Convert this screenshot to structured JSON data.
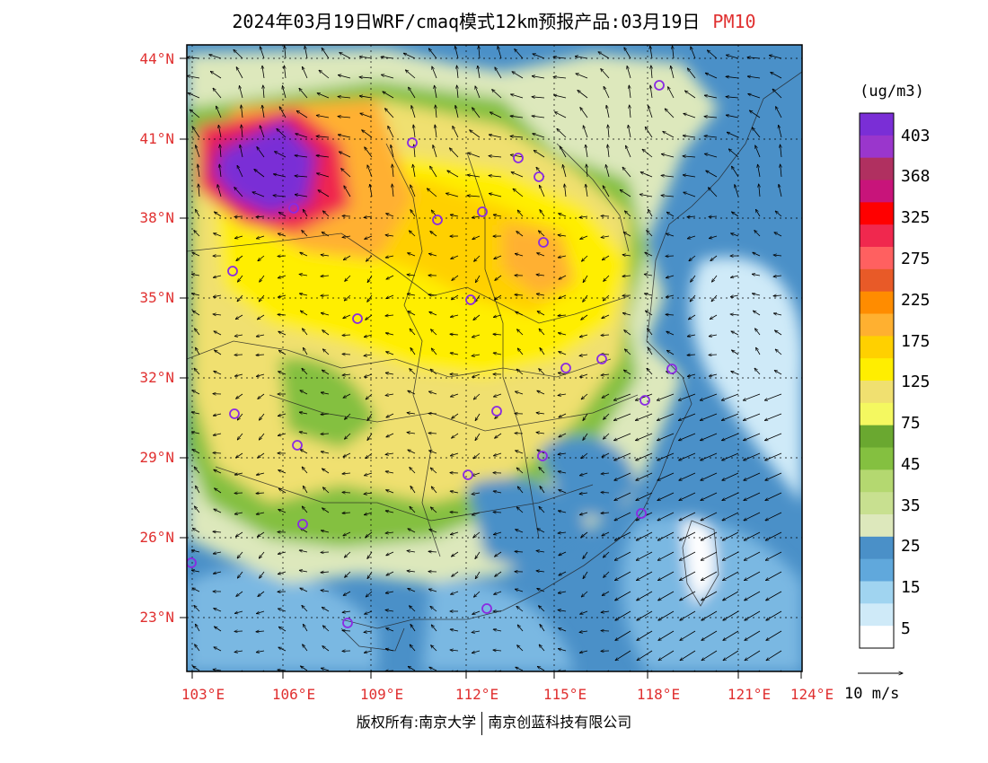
{
  "title": {
    "main": "2024年03月19日WRF/cmaq模式12km预报产品:03月19日",
    "pollutant": "PM10"
  },
  "axes": {
    "lat_labels": [
      "44°N",
      "41°N",
      "38°N",
      "35°N",
      "32°N",
      "29°N",
      "26°N",
      "23°N"
    ],
    "lon_labels": [
      "103°E",
      "106°E",
      "109°E",
      "112°E",
      "115°E",
      "118°E",
      "121°E",
      "124°E"
    ],
    "lat_range": [
      20.9,
      44.5
    ],
    "lon_range": [
      102.8,
      124.0
    ]
  },
  "legend": {
    "unit": "(ug/m3)",
    "value_labels": [
      "403",
      "368",
      "325",
      "275",
      "225",
      "175",
      "125",
      "75",
      "45",
      "35",
      "25",
      "15",
      "5"
    ],
    "colors": [
      "#7a2ed6",
      "#9a36cc",
      "#b03060",
      "#c8147a",
      "#ff0000",
      "#f0284e",
      "#ff6060",
      "#e85a28",
      "#ff8c00",
      "#ffb030",
      "#ffd000",
      "#ffee00",
      "#f0e070",
      "#f4f860",
      "#6aa830",
      "#84c040",
      "#b4d870",
      "#c8e090",
      "#dde8bc",
      "#4a90c8",
      "#60a8dc",
      "#a0d4f0",
      "#cfeaf8",
      "#ffffff"
    ]
  },
  "wind_reference": {
    "label": "10 m/s"
  },
  "copyright": {
    "left": "版权所有:南京大学",
    "right": "南京创蓝科技有限公司"
  },
  "map_colors": {
    "ocean_deep": "#4a90c8",
    "ocean_mid": "#7ab8e2",
    "ocean_light": "#cfeaf8",
    "land_low": "#dde8bc",
    "green": "#84c040",
    "yellow_pale": "#f0e070",
    "yellow": "#ffee00",
    "gold": "#ffd000",
    "orange": "#ffb030",
    "dark_orange": "#ff8c00",
    "red": "#f0284e",
    "magenta": "#c8147a",
    "purple": "#7a2ed6"
  }
}
